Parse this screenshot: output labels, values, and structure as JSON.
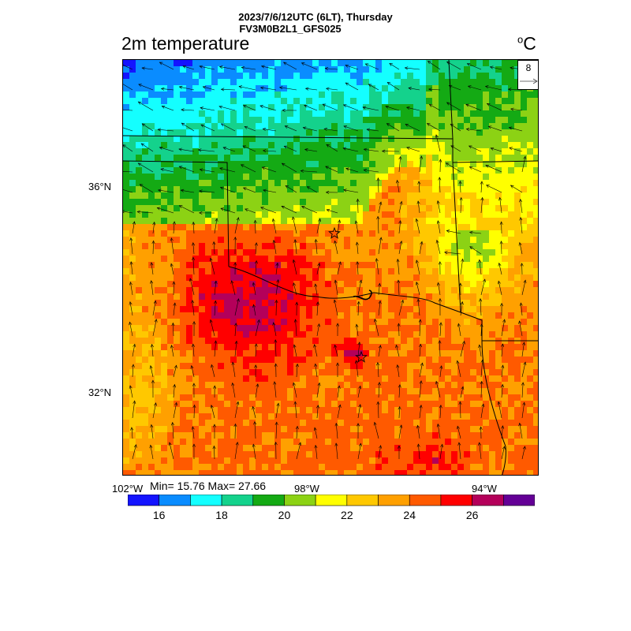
{
  "header": {
    "line1": "2023/7/6/12UTC (6LT), Thursday",
    "line2": "FV3M0B2L1_GFS025"
  },
  "map": {
    "title": "2m temperature",
    "unit": "C",
    "unit_prefix": "o",
    "reference_vector": "8",
    "lat_labels": [
      "36°N",
      "32°N"
    ],
    "lon_labels": [
      "102°W",
      "98°W",
      "94°W"
    ],
    "stats": "Min= 15.76 Max= 27.66",
    "markers": [
      "star-icon",
      "star-icon"
    ]
  },
  "colorbar": {
    "colors": [
      "#1414ff",
      "#0a8cff",
      "#14ffff",
      "#14d28c",
      "#14aa14",
      "#8cd214",
      "#ffff00",
      "#ffc800",
      "#ffa000",
      "#ff5a00",
      "#ff0000",
      "#b4005a",
      "#640096"
    ],
    "tick_labels": [
      "16",
      "18",
      "20",
      "22",
      "24",
      "26"
    ]
  }
}
